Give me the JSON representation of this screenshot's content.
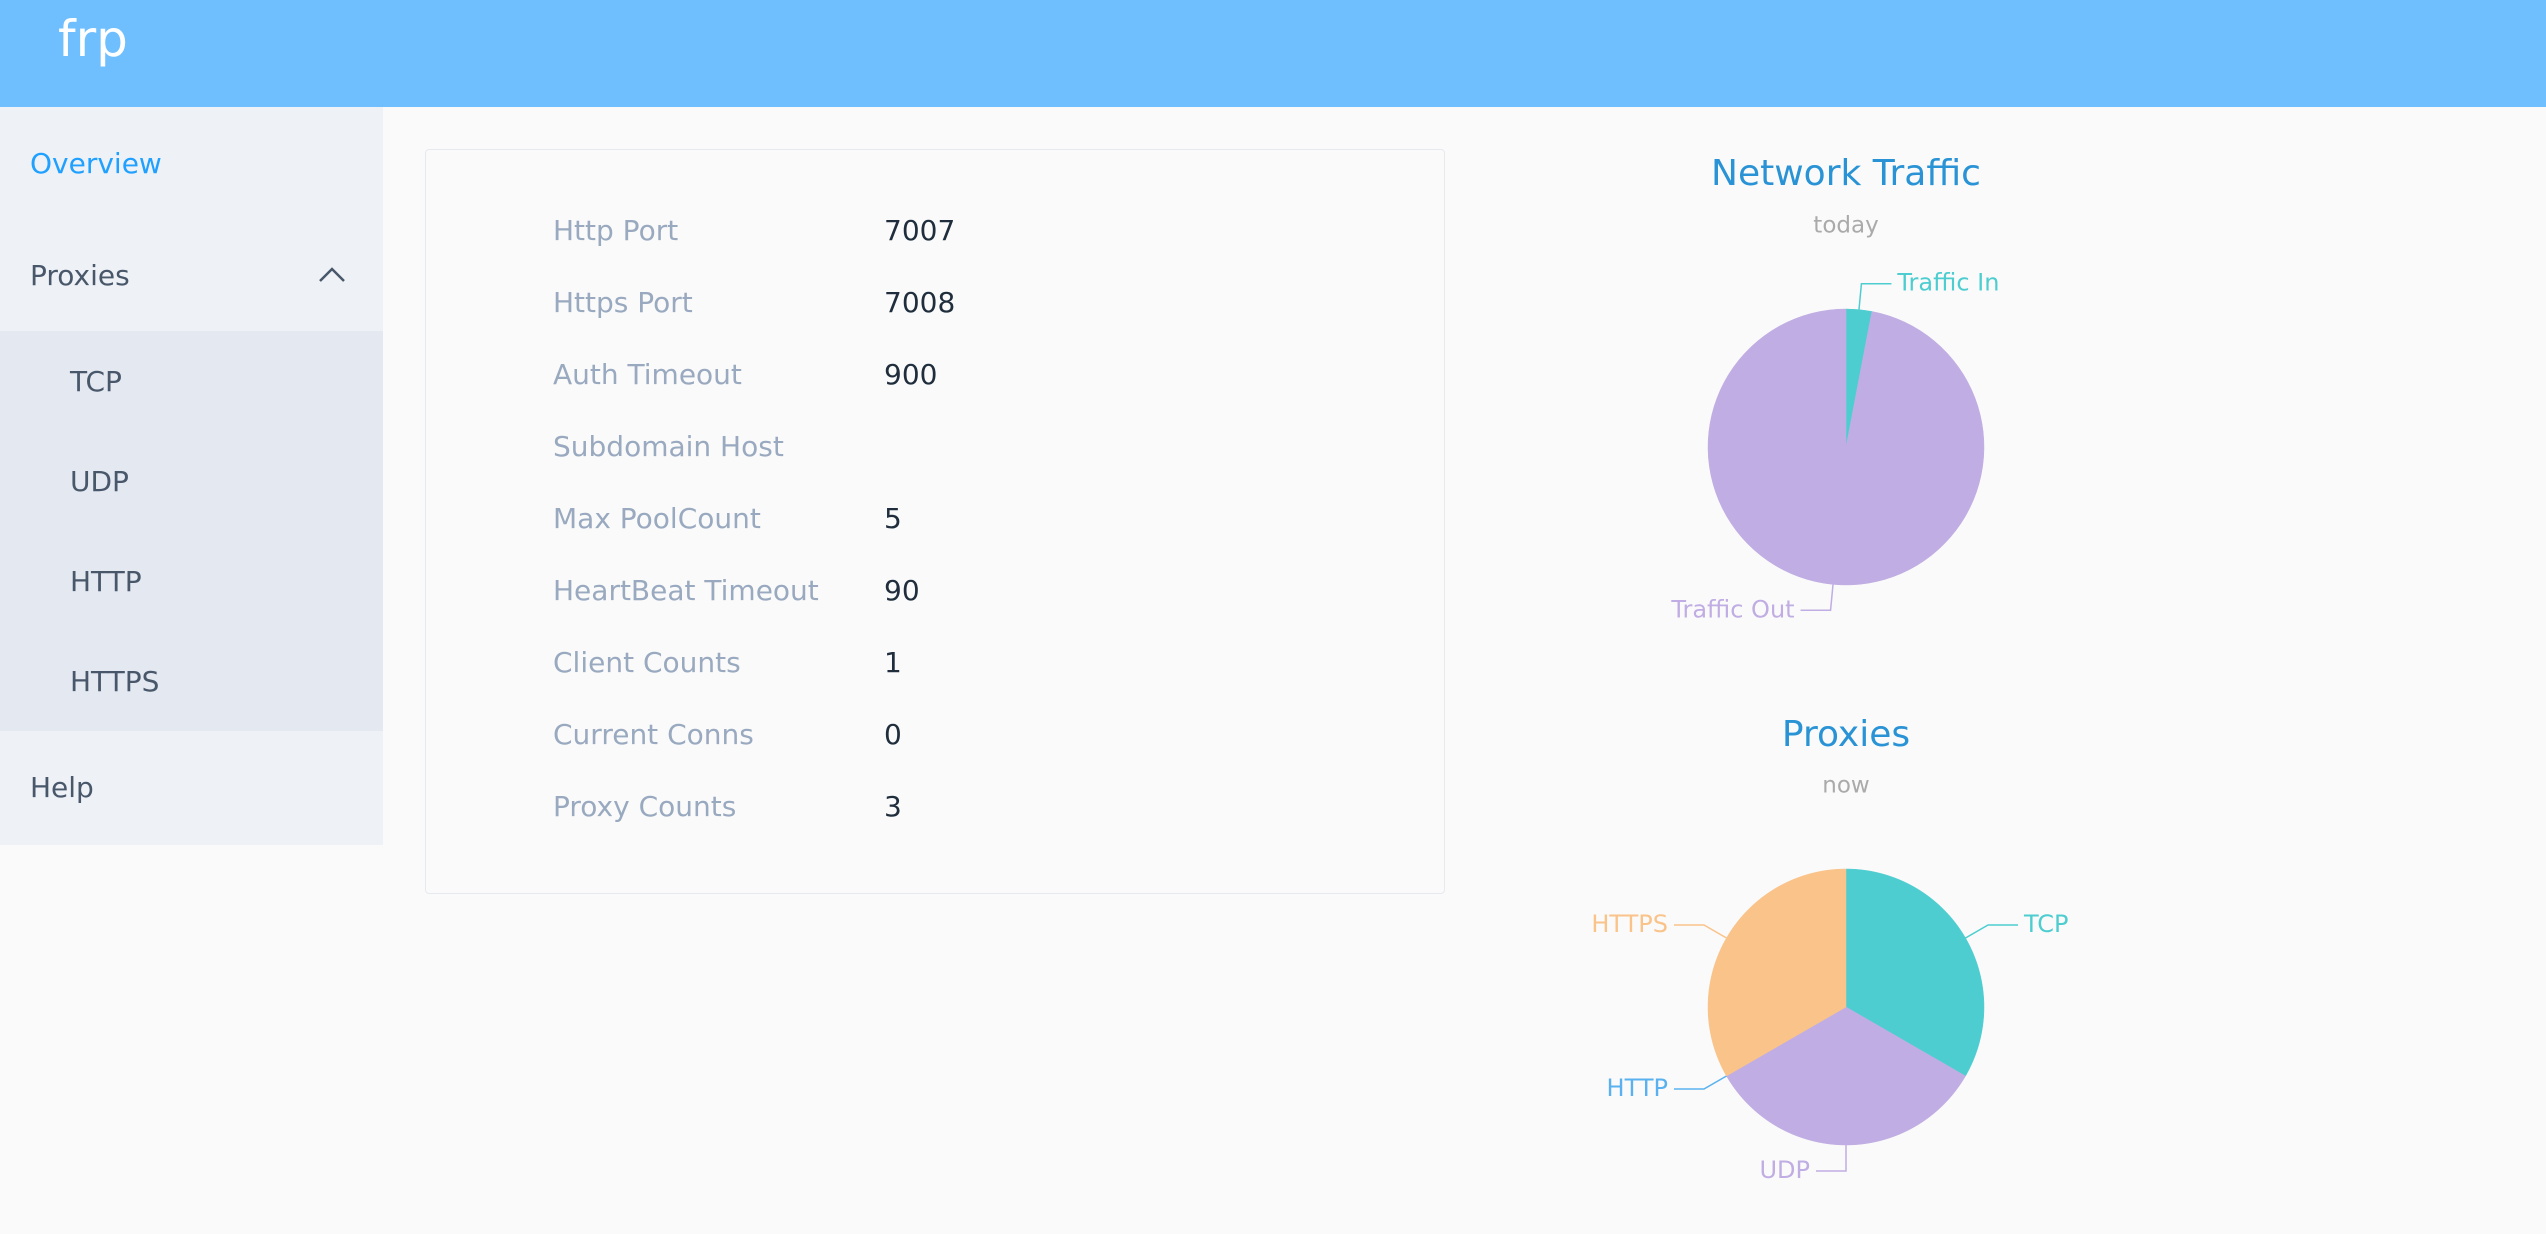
{
  "header": {
    "title": "frp"
  },
  "sidebar": {
    "items": [
      {
        "label": "Overview"
      },
      {
        "label": "Proxies",
        "children": [
          "TCP",
          "UDP",
          "HTTP",
          "HTTPS"
        ]
      },
      {
        "label": "Help"
      }
    ]
  },
  "info": {
    "rows": [
      {
        "label": "Http Port",
        "value": 7007
      },
      {
        "label": "Https Port",
        "value": 7008
      },
      {
        "label": "Auth Timeout",
        "value": 900
      },
      {
        "label": "Subdomain Host"
      },
      {
        "label": "Max PoolCount",
        "value": 5
      },
      {
        "label": "HeartBeat Timeout",
        "value": 90
      },
      {
        "label": "Client Counts",
        "value": 1
      },
      {
        "label": "Current Conns",
        "value": 0
      },
      {
        "label": "Proxy Counts",
        "value": 3
      }
    ]
  },
  "chart_data": [
    {
      "type": "pie",
      "title": "Network Traffic",
      "subtitle": "today",
      "categories": [
        "Traffic In",
        "Traffic Out"
      ],
      "values": [
        3,
        97
      ],
      "colors": [
        "#4ecdd0",
        "#c0ade3"
      ]
    },
    {
      "type": "pie",
      "title": "Proxies",
      "subtitle": "now",
      "categories": [
        "TCP",
        "UDP",
        "HTTP",
        "HTTPS"
      ],
      "values": [
        1,
        1,
        0,
        1
      ],
      "colors": [
        "#4ecdd0",
        "#c0ade3",
        "#5ab1ef",
        "#f9c38a"
      ]
    }
  ]
}
